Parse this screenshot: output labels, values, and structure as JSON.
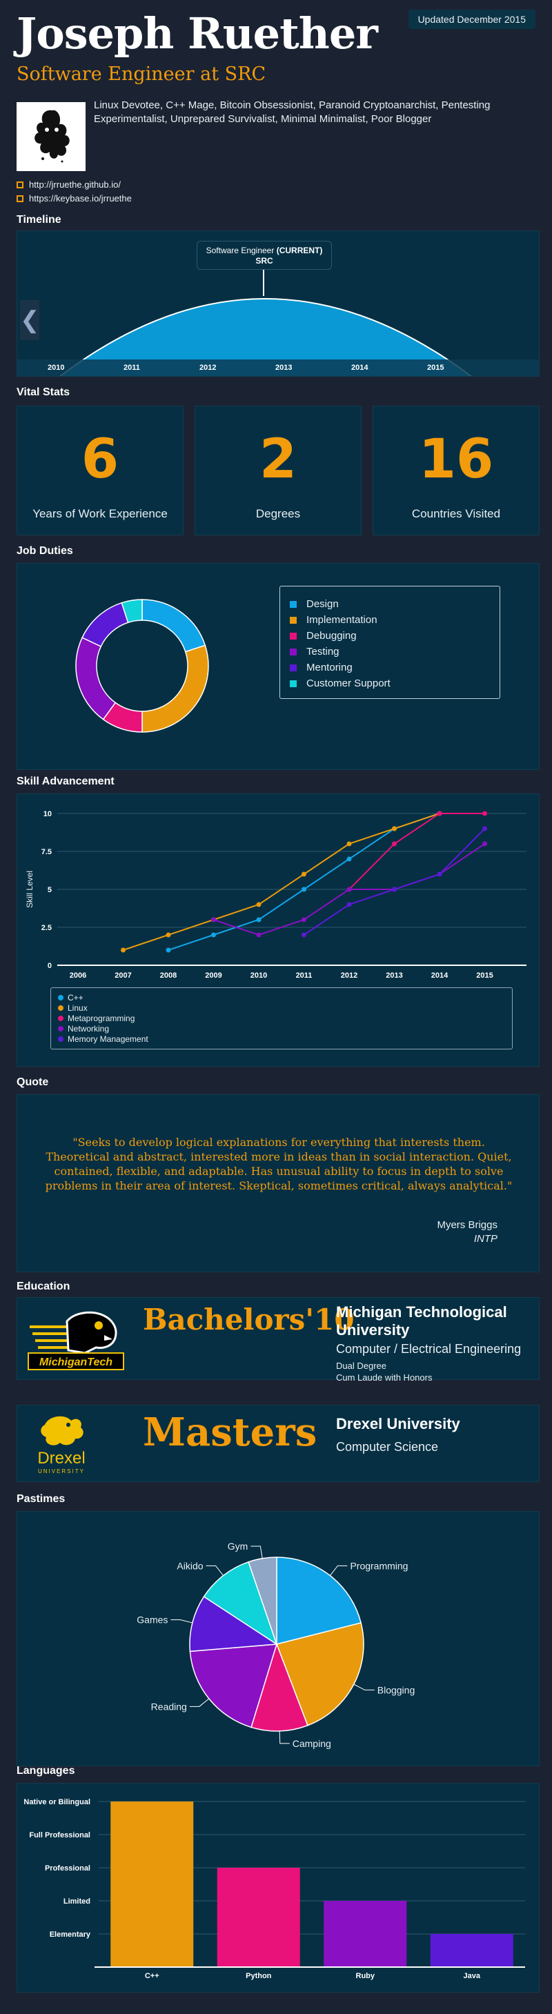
{
  "header": {
    "name": "Joseph Ruether",
    "subtitle": "Software Engineer at SRC",
    "updated": "Updated December 2015",
    "bio": "Linux Devotee, C++ Mage, Bitcoin Obsessionist, Paranoid Cryptoanarchist, Pentesting Experimentalist, Unprepared Survivalist, Minimal Minimalist, Poor Blogger",
    "links": [
      "http://jrruethe.github.io/",
      "https://keybase.io/jrruethe"
    ]
  },
  "sections": {
    "timeline": "Timeline",
    "vital_stats": "Vital Stats",
    "job_duties": "Job Duties",
    "skill_advancement": "Skill Advancement",
    "quote": "Quote",
    "education": "Education",
    "pastimes": "Pastimes",
    "languages": "Languages"
  },
  "timeline": {
    "tooltip_title": "Software Engineer",
    "tooltip_tag": "(CURRENT)",
    "tooltip_company": "SRC",
    "years": [
      "2010",
      "2011",
      "2012",
      "2013",
      "2014",
      "2015"
    ],
    "nav_prev": "❮"
  },
  "stats": [
    {
      "value": "6",
      "label": "Years of Work Experience"
    },
    {
      "value": "2",
      "label": "Degrees"
    },
    {
      "value": "16",
      "label": "Countries Visited"
    }
  ],
  "quote": {
    "text": "\"Seeks to develop logical explanations for everything that interests them. Theoretical and abstract, interested more in ideas than in social interaction. Quiet, contained, flexible, and adaptable. Has unusual ability to focus in depth to solve problems in their area of interest. Skeptical, sometimes critical, always analytical.\"",
    "source": "Myers Briggs",
    "type": "INTP"
  },
  "education": [
    {
      "degree": "Bachelors'10",
      "school": "Michigan Technological University",
      "field": "Computer / Electrical Engineering",
      "notes": [
        "Dual Degree",
        "Cum Laude with Honors"
      ],
      "logo_text": "MichiganTech"
    },
    {
      "degree": "Masters",
      "school": "Drexel University",
      "field": "Computer Science",
      "notes": [],
      "logo_text": "Drexel",
      "logo_sub": "UNIVERSITY"
    }
  ],
  "colors": {
    "accent": "#f29b0c",
    "blue": "#10a5e8",
    "orange": "#e89a0c",
    "pink": "#e8127a",
    "purple": "#8a10c4",
    "violet": "#5a1ad6",
    "cyan": "#10d2d9",
    "slate": "#8fa6c7"
  },
  "chart_data": [
    {
      "type": "pie",
      "id": "job_duties",
      "donut": true,
      "labels": [
        "Design",
        "Implementation",
        "Debugging",
        "Testing",
        "Mentoring",
        "Customer Support"
      ],
      "values": [
        20,
        30,
        10,
        22,
        13,
        5
      ],
      "colors": [
        "#10a5e8",
        "#e89a0c",
        "#e8127a",
        "#8a10c4",
        "#5a1ad6",
        "#10d2d9"
      ],
      "legend": "right"
    },
    {
      "type": "line",
      "id": "skill_advancement",
      "ylabel": "Skill Level",
      "x": [
        "2006",
        "2007",
        "2008",
        "2009",
        "2010",
        "2011",
        "2012",
        "2013",
        "2014",
        "2015"
      ],
      "yticks": [
        "0",
        "2.5",
        "5",
        "7.5",
        "10"
      ],
      "ylim": [
        0,
        10
      ],
      "legend": "bottom",
      "series": [
        {
          "name": "C++",
          "color": "#10a5e8",
          "values": [
            null,
            null,
            1,
            2,
            3,
            5,
            7,
            9,
            10,
            null
          ]
        },
        {
          "name": "Linux",
          "color": "#e89a0c",
          "values": [
            null,
            1,
            2,
            3,
            4,
            6,
            8,
            9,
            10,
            null
          ]
        },
        {
          "name": "Metaprogramming",
          "color": "#e8127a",
          "values": [
            null,
            null,
            null,
            null,
            null,
            null,
            5,
            8,
            10,
            10
          ]
        },
        {
          "name": "Networking",
          "color": "#8a10c4",
          "values": [
            null,
            null,
            null,
            3,
            2,
            3,
            5,
            5,
            6,
            8
          ]
        },
        {
          "name": "Memory Management",
          "color": "#5a1ad6",
          "values": [
            null,
            null,
            null,
            null,
            null,
            2,
            4,
            5,
            6,
            9
          ]
        }
      ]
    },
    {
      "type": "pie",
      "id": "pastimes",
      "donut": false,
      "labels": [
        "Programming",
        "Blogging",
        "Camping",
        "Reading",
        "Games",
        "Aikido",
        "Gym"
      ],
      "values": [
        20,
        22,
        10,
        18,
        10,
        10,
        5
      ],
      "colors": [
        "#10a5e8",
        "#e89a0c",
        "#e8127a",
        "#8a10c4",
        "#5a1ad6",
        "#10d2d9",
        "#8fa6c7"
      ]
    },
    {
      "type": "bar",
      "id": "languages",
      "categories": [
        "C++",
        "Python",
        "Ruby",
        "Java"
      ],
      "values": [
        5,
        3,
        2,
        1
      ],
      "yticks": [
        "Elementary",
        "Limited",
        "Professional",
        "Full Professional",
        "Native or Bilingual"
      ],
      "colors": [
        "#e89a0c",
        "#e8127a",
        "#8a10c4",
        "#5a1ad6"
      ]
    }
  ]
}
